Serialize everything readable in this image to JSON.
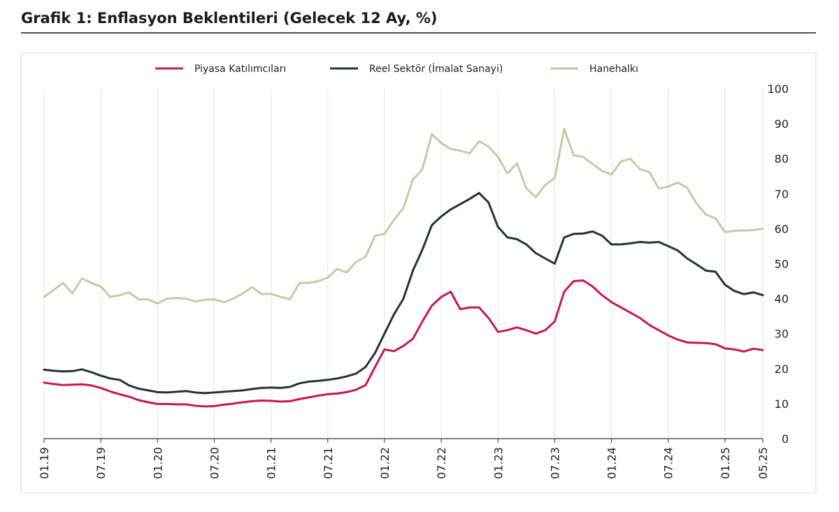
{
  "chart_data": {
    "type": "line",
    "title": "Grafik 1: Enflasyon Beklentileri (Gelecek 12 Ay, %)",
    "xlabel": "",
    "ylabel": "",
    "ylim": [
      0,
      100
    ],
    "yticks": [
      "0",
      "10",
      "20",
      "30",
      "40",
      "50",
      "60",
      "70",
      "80",
      "90",
      "100"
    ],
    "grid": "vertical",
    "legend_position": "top",
    "x_tick_labels": [
      "01.19",
      "07.19",
      "01.20",
      "07.20",
      "01.21",
      "07.21",
      "01.22",
      "07.22",
      "01.23",
      "07.23",
      "01.24",
      "07.24",
      "01.25",
      "05.25"
    ],
    "x_tick_months": [
      0,
      6,
      12,
      18,
      24,
      30,
      36,
      42,
      48,
      54,
      60,
      66,
      72,
      76
    ],
    "series": [
      {
        "name": "Piyasa Katılımcıları",
        "color": "#c8184e",
        "points": [
          [
            0,
            16
          ],
          [
            1,
            15.6
          ],
          [
            2,
            15.3
          ],
          [
            3,
            15.4
          ],
          [
            4,
            15.5
          ],
          [
            5,
            15.2
          ],
          [
            6,
            14.5
          ],
          [
            7,
            13.5
          ],
          [
            8,
            12.7
          ],
          [
            9,
            12
          ],
          [
            10,
            11
          ],
          [
            11,
            10.4
          ],
          [
            12,
            9.9
          ],
          [
            13,
            9.9
          ],
          [
            14,
            9.8
          ],
          [
            15,
            9.8
          ],
          [
            16,
            9.4
          ],
          [
            17,
            9.2
          ],
          [
            18,
            9.3
          ],
          [
            19,
            9.7
          ],
          [
            20,
            10
          ],
          [
            21,
            10.4
          ],
          [
            22,
            10.7
          ],
          [
            23,
            10.9
          ],
          [
            24,
            10.8
          ],
          [
            25,
            10.6
          ],
          [
            26,
            10.7
          ],
          [
            27,
            11.3
          ],
          [
            28,
            11.8
          ],
          [
            29,
            12.3
          ],
          [
            30,
            12.7
          ],
          [
            31,
            12.9
          ],
          [
            32,
            13.3
          ],
          [
            33,
            14
          ],
          [
            34,
            15.3
          ],
          [
            35,
            20.5
          ],
          [
            36,
            25.5
          ],
          [
            37,
            25
          ],
          [
            38,
            26.5
          ],
          [
            39,
            28.5
          ],
          [
            40,
            33.5
          ],
          [
            41,
            38
          ],
          [
            42,
            40.5
          ],
          [
            43,
            42
          ],
          [
            44,
            37
          ],
          [
            45,
            37.5
          ],
          [
            46,
            37.5
          ],
          [
            47,
            34.5
          ],
          [
            48,
            30.5
          ],
          [
            49,
            31
          ],
          [
            50,
            31.8
          ],
          [
            51,
            31
          ],
          [
            52,
            30
          ],
          [
            53,
            31
          ],
          [
            54,
            33.5
          ],
          [
            55,
            42
          ],
          [
            56,
            45
          ],
          [
            57,
            45.2
          ],
          [
            58,
            43.5
          ],
          [
            59,
            41
          ],
          [
            60,
            39
          ],
          [
            61,
            37.5
          ],
          [
            62,
            36
          ],
          [
            63,
            34.5
          ],
          [
            64,
            32.5
          ],
          [
            65,
            31
          ],
          [
            66,
            29.5
          ],
          [
            67,
            28.3
          ],
          [
            68,
            27.5
          ],
          [
            69,
            27.4
          ],
          [
            70,
            27.3
          ],
          [
            71,
            27
          ],
          [
            72,
            25.8
          ],
          [
            73,
            25.5
          ],
          [
            74,
            24.9
          ],
          [
            75,
            25.7
          ],
          [
            76,
            25.3
          ]
        ]
      },
      {
        "name": "Reel Sektör (İmalat Sanayi)",
        "color": "#243336",
        "points": [
          [
            0,
            19.7
          ],
          [
            1,
            19.4
          ],
          [
            2,
            19.2
          ],
          [
            3,
            19.3
          ],
          [
            4,
            19.8
          ],
          [
            5,
            19
          ],
          [
            6,
            18
          ],
          [
            7,
            17.2
          ],
          [
            8,
            16.8
          ],
          [
            9,
            15.2
          ],
          [
            10,
            14.3
          ],
          [
            11,
            13.8
          ],
          [
            12,
            13.3
          ],
          [
            13,
            13.2
          ],
          [
            14,
            13.4
          ],
          [
            15,
            13.6
          ],
          [
            16,
            13.2
          ],
          [
            17,
            13
          ],
          [
            18,
            13.2
          ],
          [
            19,
            13.4
          ],
          [
            20,
            13.6
          ],
          [
            21,
            13.8
          ],
          [
            22,
            14.2
          ],
          [
            23,
            14.5
          ],
          [
            24,
            14.6
          ],
          [
            25,
            14.5
          ],
          [
            26,
            14.8
          ],
          [
            27,
            15.8
          ],
          [
            28,
            16.3
          ],
          [
            29,
            16.5
          ],
          [
            30,
            16.8
          ],
          [
            31,
            17.2
          ],
          [
            32,
            17.8
          ],
          [
            33,
            18.6
          ],
          [
            34,
            20.5
          ],
          [
            35,
            24.5
          ],
          [
            36,
            30
          ],
          [
            37,
            35.5
          ],
          [
            38,
            40
          ],
          [
            39,
            48
          ],
          [
            40,
            54
          ],
          [
            41,
            61
          ],
          [
            42,
            63.5
          ],
          [
            43,
            65.5
          ],
          [
            44,
            67
          ],
          [
            45,
            68.5
          ],
          [
            46,
            70.2
          ],
          [
            47,
            67.5
          ],
          [
            48,
            60.5
          ],
          [
            49,
            57.5
          ],
          [
            50,
            57
          ],
          [
            51,
            55.5
          ],
          [
            52,
            53
          ],
          [
            53,
            51.5
          ],
          [
            54,
            50
          ],
          [
            55,
            57.5
          ],
          [
            56,
            58.5
          ],
          [
            57,
            58.6
          ],
          [
            58,
            59.2
          ],
          [
            59,
            58
          ],
          [
            60,
            55.5
          ],
          [
            61,
            55.5
          ],
          [
            62,
            55.8
          ],
          [
            63,
            56.2
          ],
          [
            64,
            56
          ],
          [
            65,
            56.2
          ],
          [
            66,
            55
          ],
          [
            67,
            53.8
          ],
          [
            68,
            51.5
          ],
          [
            69,
            49.8
          ],
          [
            70,
            48
          ],
          [
            71,
            47.7
          ],
          [
            72,
            44
          ],
          [
            73,
            42.2
          ],
          [
            74,
            41.3
          ],
          [
            75,
            41.8
          ],
          [
            76,
            41
          ]
        ]
      },
      {
        "name": "Hanehalkı",
        "color": "#cdc7a6",
        "points": [
          [
            0,
            40.5
          ],
          [
            1,
            42.5
          ],
          [
            2,
            44.5
          ],
          [
            3,
            41.5
          ],
          [
            4,
            45.8
          ],
          [
            5,
            44.5
          ],
          [
            6,
            43.5
          ],
          [
            7,
            40.5
          ],
          [
            8,
            41
          ],
          [
            9,
            41.8
          ],
          [
            10,
            39.8
          ],
          [
            11,
            39.8
          ],
          [
            12,
            38.6
          ],
          [
            13,
            40
          ],
          [
            14,
            40.2
          ],
          [
            15,
            40
          ],
          [
            16,
            39.2
          ],
          [
            17,
            39.7
          ],
          [
            18,
            39.8
          ],
          [
            19,
            39
          ],
          [
            20,
            40
          ],
          [
            21,
            41.5
          ],
          [
            22,
            43.3
          ],
          [
            23,
            41.3
          ],
          [
            24,
            41.4
          ],
          [
            25,
            40.5
          ],
          [
            26,
            39.8
          ],
          [
            27,
            44.5
          ],
          [
            28,
            44.5
          ],
          [
            29,
            45
          ],
          [
            30,
            46
          ],
          [
            31,
            48.5
          ],
          [
            32,
            47.5
          ],
          [
            33,
            50.5
          ],
          [
            34,
            52
          ],
          [
            35,
            58
          ],
          [
            36,
            58.5
          ],
          [
            37,
            62.5
          ],
          [
            38,
            66
          ],
          [
            39,
            74
          ],
          [
            40,
            77
          ],
          [
            41,
            87
          ],
          [
            42,
            84.5
          ],
          [
            43,
            82.8
          ],
          [
            44,
            82.3
          ],
          [
            45,
            81.5
          ],
          [
            46,
            85
          ],
          [
            47,
            83.5
          ],
          [
            48,
            80.5
          ],
          [
            49,
            75.8
          ],
          [
            50,
            78.7
          ],
          [
            51,
            71.5
          ],
          [
            52,
            69
          ],
          [
            53,
            72.5
          ],
          [
            54,
            74.5
          ],
          [
            55,
            88.5
          ],
          [
            56,
            81
          ],
          [
            57,
            80.5
          ],
          [
            58,
            78.5
          ],
          [
            59,
            76.5
          ],
          [
            60,
            75.5
          ],
          [
            61,
            79.2
          ],
          [
            62,
            80
          ],
          [
            63,
            77
          ],
          [
            64,
            76.2
          ],
          [
            65,
            71.5
          ],
          [
            66,
            72
          ],
          [
            67,
            73.2
          ],
          [
            68,
            71.7
          ],
          [
            69,
            67.2
          ],
          [
            70,
            64
          ],
          [
            71,
            63
          ],
          [
            72,
            59
          ],
          [
            73,
            59.4
          ],
          [
            74,
            59.5
          ],
          [
            75,
            59.6
          ],
          [
            76,
            60
          ]
        ]
      }
    ]
  }
}
